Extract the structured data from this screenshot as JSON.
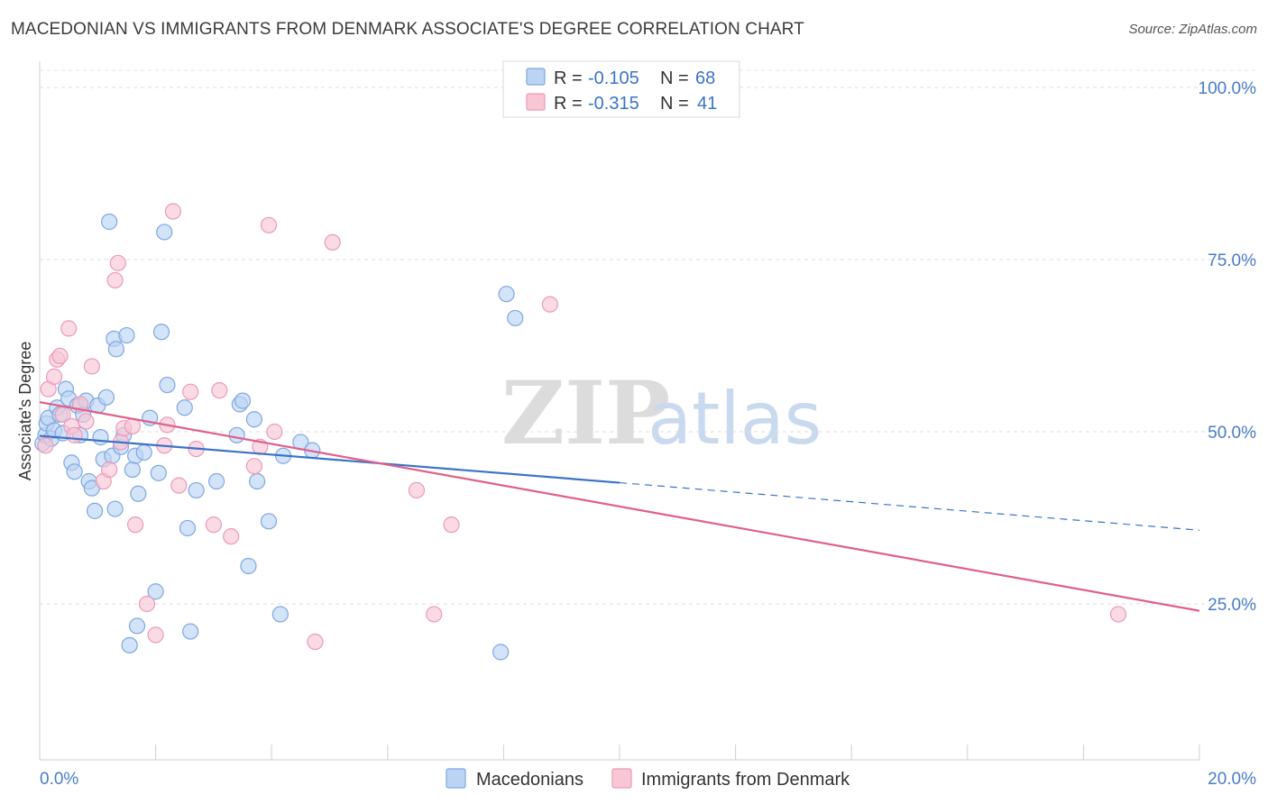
{
  "title": "MACEDONIAN VS IMMIGRANTS FROM DENMARK ASSOCIATE'S DEGREE CORRELATION CHART",
  "source": "Source: ZipAtlas.com",
  "watermark": {
    "zip": "ZIP",
    "atlas": "atlas"
  },
  "legend": {
    "r_label": "R =",
    "n_label": "N =",
    "rows": [
      {
        "r": "-0.105",
        "n": "68",
        "color": "#6fa0e0",
        "fill": "#bcd4f4"
      },
      {
        "r": "-0.315",
        "n": "41",
        "color": "#e98aa8",
        "fill": "#f8c6d5"
      }
    ]
  },
  "chart_data": {
    "type": "scatter",
    "title": "MACEDONIAN VS IMMIGRANTS FROM DENMARK ASSOCIATE'S DEGREE CORRELATION CHART",
    "xlabel": "",
    "ylabel": "Associate's Degree",
    "xlim": [
      0,
      20
    ],
    "ylim": [
      0,
      100
    ],
    "x_tick_labels": [
      "0.0%",
      "20.0%"
    ],
    "y_ticks": [
      25,
      50,
      75,
      100
    ],
    "y_tick_labels": [
      "25.0%",
      "50.0%",
      "75.0%",
      "100.0%"
    ],
    "grid": true,
    "series": [
      {
        "name": "Macedonians",
        "color": "#3b73c8",
        "fill": "#bcd4f4",
        "stroke": "#7ea8df",
        "points": [
          [
            0.05,
            48.3
          ],
          [
            0.1,
            49.5
          ],
          [
            0.12,
            51.2
          ],
          [
            0.15,
            52.0
          ],
          [
            0.2,
            49.0
          ],
          [
            0.25,
            50.2
          ],
          [
            0.3,
            53.5
          ],
          [
            0.35,
            52.5
          ],
          [
            0.4,
            49.8
          ],
          [
            0.45,
            56.2
          ],
          [
            0.5,
            54.8
          ],
          [
            0.55,
            45.5
          ],
          [
            0.6,
            44.2
          ],
          [
            0.65,
            53.8
          ],
          [
            0.7,
            49.5
          ],
          [
            0.75,
            52.5
          ],
          [
            0.8,
            54.5
          ],
          [
            0.85,
            42.8
          ],
          [
            0.9,
            41.8
          ],
          [
            0.95,
            38.5
          ],
          [
            1.0,
            53.8
          ],
          [
            1.05,
            49.2
          ],
          [
            1.1,
            46.0
          ],
          [
            1.15,
            55.0
          ],
          [
            1.2,
            80.5
          ],
          [
            1.25,
            46.5
          ],
          [
            1.28,
            63.5
          ],
          [
            1.3,
            38.8
          ],
          [
            1.32,
            62.0
          ],
          [
            1.4,
            47.8
          ],
          [
            1.45,
            49.5
          ],
          [
            1.5,
            64.0
          ],
          [
            1.55,
            19.0
          ],
          [
            1.6,
            44.5
          ],
          [
            1.65,
            46.5
          ],
          [
            1.68,
            21.8
          ],
          [
            1.7,
            41.0
          ],
          [
            1.8,
            47.0
          ],
          [
            1.9,
            52.0
          ],
          [
            2.0,
            26.8
          ],
          [
            2.05,
            44.0
          ],
          [
            2.1,
            64.5
          ],
          [
            2.15,
            79.0
          ],
          [
            2.2,
            56.8
          ],
          [
            2.5,
            53.5
          ],
          [
            2.55,
            36.0
          ],
          [
            2.6,
            21.0
          ],
          [
            2.7,
            41.5
          ],
          [
            3.05,
            42.8
          ],
          [
            3.4,
            49.5
          ],
          [
            3.45,
            54.0
          ],
          [
            3.5,
            54.5
          ],
          [
            3.6,
            30.5
          ],
          [
            3.7,
            51.8
          ],
          [
            3.75,
            42.8
          ],
          [
            3.95,
            37.0
          ],
          [
            4.15,
            23.5
          ],
          [
            4.2,
            46.5
          ],
          [
            4.5,
            48.5
          ],
          [
            4.7,
            47.3
          ],
          [
            7.95,
            18.0
          ],
          [
            8.05,
            70.0
          ],
          [
            8.2,
            66.5
          ]
        ],
        "trend": {
          "x0": 0,
          "y0": 49.4,
          "x1": 10.0,
          "y1": 42.6,
          "dash_to_x": 20.0,
          "dash_to_y": 35.7
        }
      },
      {
        "name": "Immigrants from Denmark",
        "color": "#e0608a",
        "fill": "#f8c6d5",
        "stroke": "#ec9ab6",
        "points": [
          [
            0.1,
            48.0
          ],
          [
            0.15,
            56.2
          ],
          [
            0.25,
            58.0
          ],
          [
            0.3,
            60.5
          ],
          [
            0.35,
            61.0
          ],
          [
            0.4,
            52.5
          ],
          [
            0.5,
            65.0
          ],
          [
            0.55,
            50.8
          ],
          [
            0.6,
            49.5
          ],
          [
            0.7,
            54.0
          ],
          [
            0.8,
            51.5
          ],
          [
            0.9,
            59.5
          ],
          [
            1.1,
            42.8
          ],
          [
            1.2,
            44.5
          ],
          [
            1.3,
            72.0
          ],
          [
            1.35,
            74.5
          ],
          [
            1.4,
            48.5
          ],
          [
            1.45,
            50.5
          ],
          [
            1.6,
            50.8
          ],
          [
            1.65,
            36.5
          ],
          [
            1.85,
            25.0
          ],
          [
            2.0,
            20.5
          ],
          [
            2.15,
            48.0
          ],
          [
            2.2,
            51.0
          ],
          [
            2.3,
            82.0
          ],
          [
            2.4,
            42.2
          ],
          [
            2.6,
            55.8
          ],
          [
            2.7,
            47.5
          ],
          [
            3.0,
            36.5
          ],
          [
            3.1,
            56.0
          ],
          [
            3.3,
            34.8
          ],
          [
            3.7,
            45.0
          ],
          [
            3.8,
            47.8
          ],
          [
            3.95,
            80.0
          ],
          [
            4.05,
            50.0
          ],
          [
            4.75,
            19.5
          ],
          [
            5.05,
            77.5
          ],
          [
            6.5,
            41.5
          ],
          [
            6.8,
            23.5
          ],
          [
            7.1,
            36.5
          ],
          [
            8.8,
            68.5
          ],
          [
            18.6,
            23.5
          ]
        ],
        "trend": {
          "x0": 0,
          "y0": 54.3,
          "x1": 20.0,
          "y1": 24.0
        }
      }
    ]
  },
  "bottom_legend": [
    {
      "label": "Macedonians"
    },
    {
      "label": "Immigrants from Denmark"
    }
  ]
}
